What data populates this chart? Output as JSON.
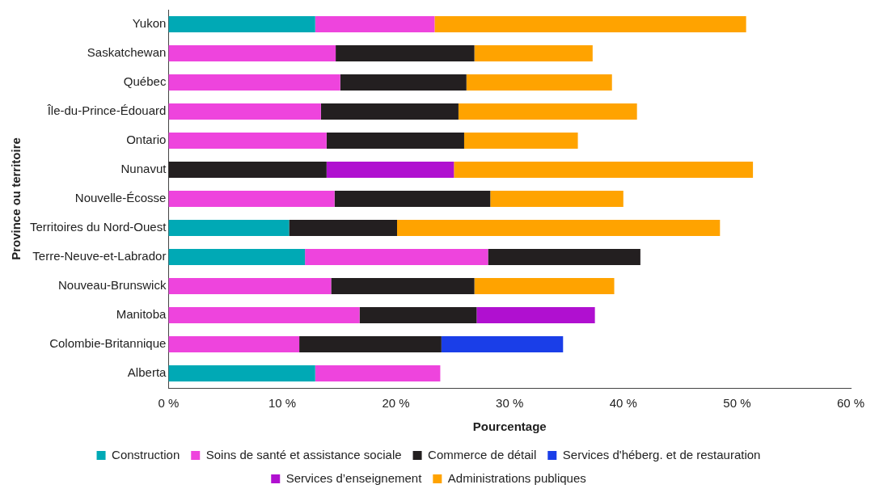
{
  "chart_data": {
    "type": "bar",
    "orientation": "horizontal",
    "stacked": true,
    "xlabel": "Pourcentage",
    "ylabel": "Province ou territoire",
    "categories": [
      "Yukon",
      "Saskatchewan",
      "Québec",
      "Île-du-Prince-Édouard",
      "Ontario",
      "Nunavut",
      "Nouvelle-Écosse",
      "Territoires du Nord-Ouest",
      "Terre-Neuve-et-Labrador",
      "Nouveau-Brunswick",
      "Manitoba",
      "Colombie-Britannique",
      "Alberta"
    ],
    "series": [
      {
        "name": "Construction",
        "color": "#00a9b5",
        "values": [
          12.9,
          null,
          null,
          null,
          null,
          null,
          null,
          10.6,
          12.0,
          null,
          null,
          null,
          12.9
        ]
      },
      {
        "name": "Soins de santé et assistance sociale",
        "color": "#ee44dd",
        "values": [
          10.5,
          14.7,
          15.1,
          13.4,
          13.9,
          null,
          14.6,
          null,
          16.1,
          14.3,
          16.8,
          11.5,
          11.0
        ]
      },
      {
        "name": "Commerce de détail",
        "color": "#231f20",
        "values": [
          null,
          12.2,
          11.1,
          12.1,
          12.1,
          13.9,
          13.7,
          9.5,
          13.4,
          12.6,
          10.3,
          12.5,
          null
        ]
      },
      {
        "name": "Services d'héberg. et de restauration",
        "color": "#1a3ee8",
        "values": [
          null,
          null,
          null,
          null,
          null,
          null,
          null,
          null,
          null,
          null,
          null,
          10.7,
          null
        ]
      },
      {
        "name": "Services d’enseignement",
        "color": "#b010d0",
        "values": [
          null,
          null,
          null,
          null,
          null,
          11.2,
          null,
          null,
          null,
          null,
          10.4,
          null,
          null
        ]
      },
      {
        "name": "Administrations publiques",
        "color": "#ffa300",
        "values": [
          27.4,
          10.4,
          12.8,
          15.7,
          10.0,
          26.3,
          11.7,
          28.4,
          null,
          12.3,
          null,
          null,
          null
        ]
      }
    ],
    "xlim": [
      0,
      60
    ],
    "xticks": [
      {
        "value": 0,
        "label": "0 %"
      },
      {
        "value": 10,
        "label": "10 %"
      },
      {
        "value": 20,
        "label": "20 %"
      },
      {
        "value": 30,
        "label": "30 %"
      },
      {
        "value": 40,
        "label": "40 %"
      },
      {
        "value": 50,
        "label": "50 %"
      },
      {
        "value": 60,
        "label": "60 %"
      }
    ],
    "grid": false,
    "legend": "bottom"
  }
}
